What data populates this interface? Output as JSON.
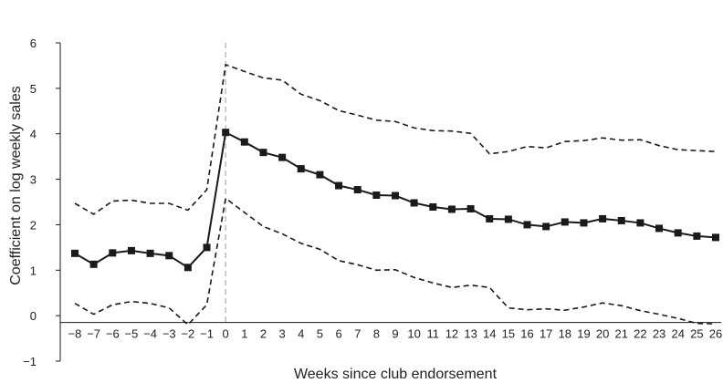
{
  "chart_data": {
    "type": "line",
    "xlabel": "Weeks since club endorsement",
    "ylabel": "Coefficient on log weekly sales",
    "xlim": [
      -8,
      26
    ],
    "ylim": [
      -1,
      6
    ],
    "x_ticks": [
      -8,
      -7,
      -6,
      -5,
      -4,
      -3,
      -2,
      -1,
      0,
      1,
      2,
      3,
      4,
      5,
      6,
      7,
      8,
      9,
      10,
      11,
      12,
      13,
      14,
      15,
      16,
      17,
      18,
      19,
      20,
      21,
      22,
      23,
      24,
      25,
      26
    ],
    "y_ticks": [
      -1,
      0,
      1,
      2,
      3,
      4,
      5,
      6
    ],
    "reference_line_x": 0,
    "grid": false,
    "x": [
      -8,
      -7,
      -6,
      -5,
      -4,
      -3,
      -2,
      -1,
      0,
      1,
      2,
      3,
      4,
      5,
      6,
      7,
      8,
      9,
      10,
      11,
      12,
      13,
      14,
      15,
      16,
      17,
      18,
      19,
      20,
      21,
      22,
      23,
      24,
      25,
      26
    ],
    "series": [
      {
        "role": "estimate",
        "style": "solid-square-markers",
        "values": [
          1.37,
          1.13,
          1.38,
          1.43,
          1.37,
          1.32,
          1.06,
          1.5,
          4.03,
          3.82,
          3.59,
          3.48,
          3.23,
          3.1,
          2.86,
          2.77,
          2.65,
          2.64,
          2.48,
          2.39,
          2.34,
          2.35,
          2.13,
          2.12,
          2.0,
          1.96,
          2.06,
          2.04,
          2.13,
          2.09,
          2.04,
          1.92,
          1.82,
          1.75,
          1.72
        ]
      },
      {
        "role": "upper-bound",
        "style": "dashed",
        "values": [
          2.47,
          2.23,
          2.52,
          2.54,
          2.47,
          2.47,
          2.32,
          2.77,
          5.52,
          5.37,
          5.23,
          5.18,
          4.87,
          4.73,
          4.51,
          4.41,
          4.3,
          4.27,
          4.13,
          4.07,
          4.06,
          4.01,
          3.56,
          3.61,
          3.72,
          3.69,
          3.83,
          3.85,
          3.91,
          3.86,
          3.87,
          3.74,
          3.65,
          3.63,
          3.61
        ]
      },
      {
        "role": "lower-bound",
        "style": "dashed",
        "values": [
          0.27,
          0.03,
          0.24,
          0.31,
          0.27,
          0.17,
          -0.2,
          0.24,
          2.58,
          2.27,
          1.96,
          1.8,
          1.59,
          1.46,
          1.21,
          1.12,
          1.0,
          1.01,
          0.84,
          0.72,
          0.62,
          0.67,
          0.62,
          0.17,
          0.13,
          0.15,
          0.12,
          0.19,
          0.28,
          0.22,
          0.11,
          0.03,
          -0.06,
          -0.17,
          -0.18
        ]
      }
    ],
    "colors": {
      "line": "#1a1a1a",
      "reference": "#bdbdbd"
    }
  }
}
